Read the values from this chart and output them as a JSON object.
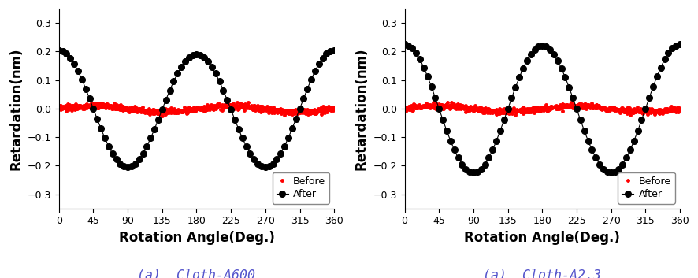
{
  "subplot1": {
    "label": "(a)  Cloth-A600",
    "after_amplitude": 0.205,
    "after_trough": -0.21,
    "after_mid_peak": 0.19
  },
  "subplot2": {
    "label": "(a)  Cloth-A2.3",
    "after_amplitude": 0.225,
    "after_trough": -0.235,
    "after_mid_peak": 0.22
  },
  "xlabel": "Rotation Angle(Deg.)",
  "ylabel": "Retardation(nm)",
  "xticks": [
    0,
    45,
    90,
    135,
    180,
    225,
    270,
    315,
    360
  ],
  "yticks": [
    -0.3,
    -0.2,
    -0.1,
    0.0,
    0.1,
    0.2,
    0.3
  ],
  "ylim": [
    -0.35,
    0.35
  ],
  "xlim": [
    0,
    360
  ],
  "before_color": "#ff0000",
  "after_color": "#000000",
  "before_label": "Before",
  "after_label": "After",
  "after_markersize": 5.5,
  "after_linewidth": 0.8,
  "before_markersize": 2.5,
  "n_points_after": 72,
  "n_points_before": 720,
  "tick_fontsize": 9,
  "axis_label_fontsize": 12,
  "caption_fontsize": 12,
  "legend_fontsize": 9,
  "background_color": "#ffffff"
}
